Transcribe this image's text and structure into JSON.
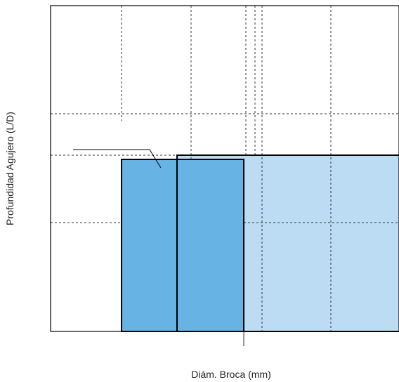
{
  "axes": {
    "x_label": "Diám. Broca (mm)",
    "y_label": "Profundidad Agujero (L/D)"
  },
  "colors": {
    "dark_block": "#66b3e4",
    "light_block": "#bcdcf3",
    "outline": "#000000",
    "grid": "#333333"
  }
}
